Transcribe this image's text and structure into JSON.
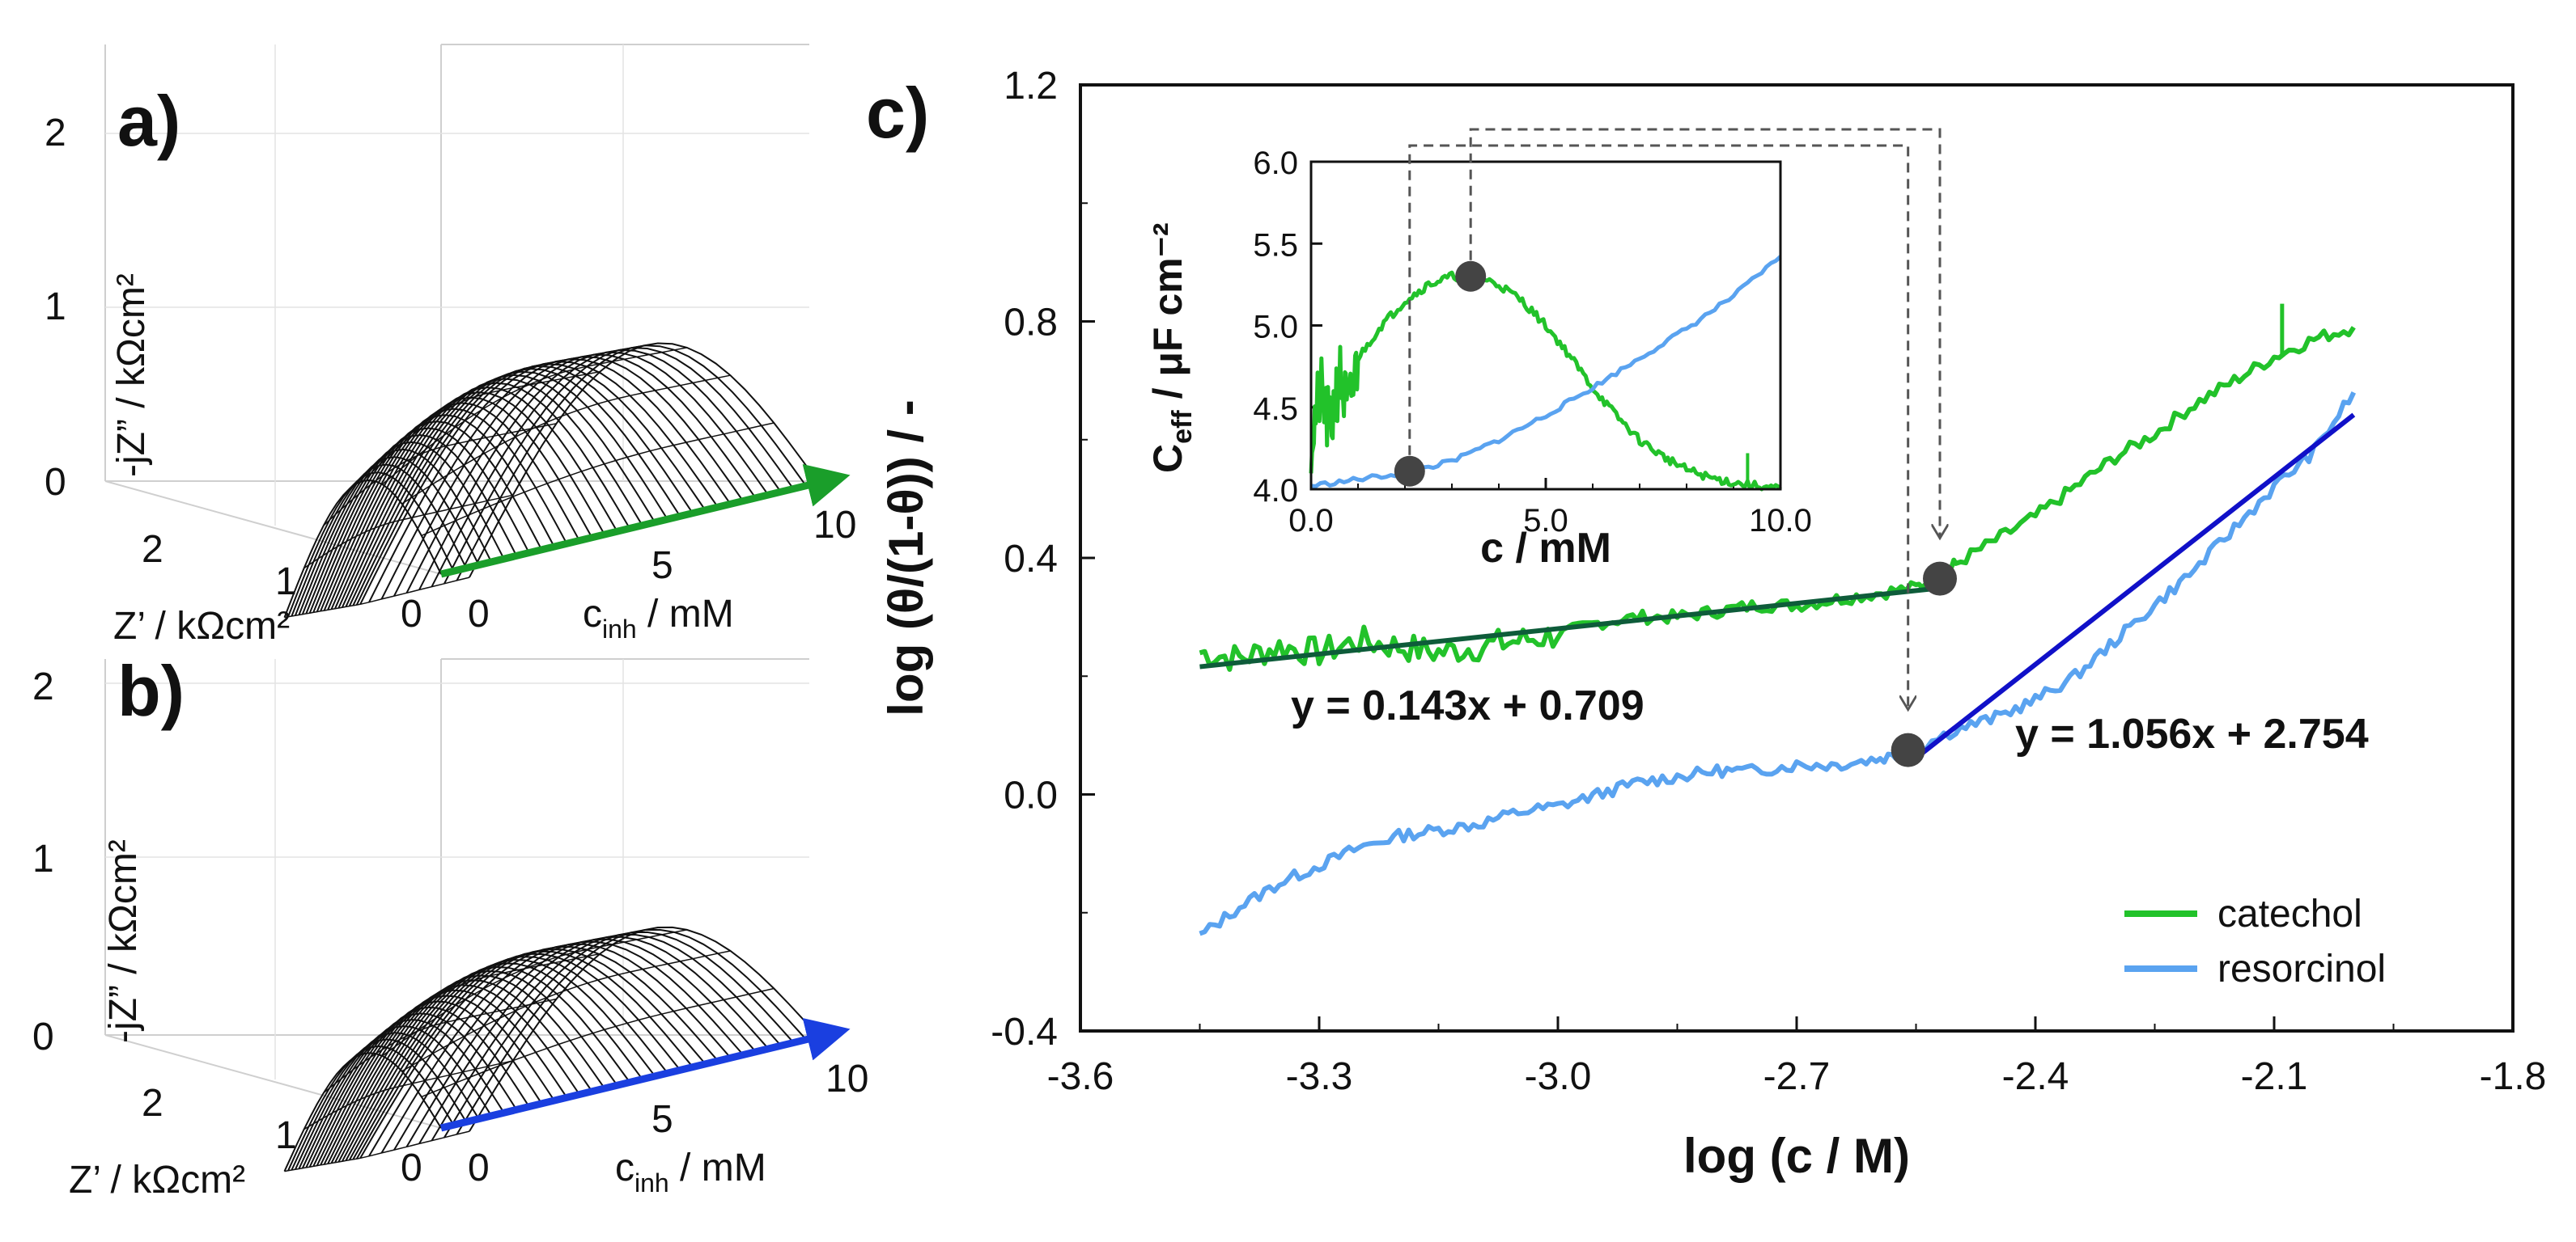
{
  "chart_data": [
    {
      "panel": "a",
      "type": "3d-surface",
      "panel_label": "a)",
      "series_color": "#1a9e2a",
      "zlabel": "-jZ” / kΩcm²",
      "ylabel": "Z’ / kΩcm²",
      "xlabel_main": "c",
      "xlabel_sub": "inh",
      "xlabel_tail": " / mM",
      "z_ticks": [
        "0",
        "1",
        "2"
      ],
      "y_ticks": [
        "2",
        "1",
        "0"
      ],
      "x_ticks": [
        "0",
        "5",
        "10"
      ],
      "peak_height": 1.2,
      "arc_count": 30
    },
    {
      "panel": "b",
      "type": "3d-surface",
      "panel_label": "b)",
      "series_color": "#1a3fe0",
      "zlabel": "-jZ” / kΩcm²",
      "ylabel": "Z’ / kΩcm²",
      "xlabel_main": "c",
      "xlabel_sub": "inh",
      "xlabel_tail": " / mM",
      "z_ticks": [
        "0",
        "1",
        "2"
      ],
      "y_ticks": [
        "2",
        "1",
        "0"
      ],
      "x_ticks": [
        "0",
        "5",
        "10"
      ],
      "peak_height": 1.0,
      "arc_count": 30
    },
    {
      "panel": "c",
      "type": "line",
      "panel_label": "c)",
      "xlabel": "log (c / M)",
      "ylabel": "log (θ/(1-θ)) / -",
      "xlim": [
        -3.6,
        -1.8
      ],
      "ylim": [
        -0.4,
        1.2
      ],
      "x_ticks": [
        "-3.6",
        "-3.3",
        "-3.0",
        "-2.7",
        "-2.4",
        "-2.1",
        "-1.8"
      ],
      "y_ticks": [
        "-0.4",
        "0.0",
        "0.4",
        "0.8",
        "1.2"
      ],
      "series": [
        {
          "name": "catechol",
          "color": "#22c22a",
          "x": [
            -3.45,
            -3.4,
            -3.35,
            -3.3,
            -3.25,
            -3.2,
            -3.15,
            -3.1,
            -3.05,
            -3.0,
            -2.95,
            -2.9,
            -2.85,
            -2.8,
            -2.75,
            -2.7,
            -2.65,
            -2.6,
            -2.55,
            -2.52,
            -2.5,
            -2.45,
            -2.4,
            -2.35,
            -2.3,
            -2.25,
            -2.2,
            -2.15,
            -2.1,
            -2.05,
            -2.0
          ],
          "y": [
            0.24,
            0.23,
            0.25,
            0.24,
            0.26,
            0.25,
            0.24,
            0.25,
            0.26,
            0.27,
            0.29,
            0.3,
            0.3,
            0.31,
            0.32,
            0.32,
            0.33,
            0.34,
            0.35,
            0.37,
            0.39,
            0.43,
            0.47,
            0.52,
            0.57,
            0.61,
            0.66,
            0.7,
            0.74,
            0.77,
            0.79
          ]
        },
        {
          "name": "resorcinol",
          "color": "#5aa3f0",
          "x": [
            -3.45,
            -3.4,
            -3.35,
            -3.3,
            -3.25,
            -3.2,
            -3.15,
            -3.1,
            -3.05,
            -3.0,
            -2.95,
            -2.9,
            -2.85,
            -2.8,
            -2.75,
            -2.7,
            -2.65,
            -2.6,
            -2.56,
            -2.5,
            -2.45,
            -2.4,
            -2.35,
            -2.3,
            -2.25,
            -2.2,
            -2.15,
            -2.1,
            -2.05,
            -2.0
          ],
          "y": [
            -0.24,
            -0.19,
            -0.15,
            -0.12,
            -0.09,
            -0.07,
            -0.06,
            -0.05,
            -0.03,
            -0.02,
            0.0,
            0.02,
            0.03,
            0.04,
            0.04,
            0.05,
            0.05,
            0.06,
            0.07,
            0.11,
            0.13,
            0.16,
            0.2,
            0.26,
            0.32,
            0.38,
            0.45,
            0.52,
            0.58,
            0.68
          ]
        }
      ],
      "fits": [
        {
          "name": "catechol fit",
          "color": "#0e5c3a",
          "label_color": "#0b7a3a",
          "label": "y = 0.143x + 0.709",
          "x": [
            -3.45,
            -2.52
          ],
          "y": [
            0.216,
            0.349
          ]
        },
        {
          "name": "resorcinol fit",
          "color": "#1010c8",
          "label_color": "#1a1ae0",
          "label": "y = 1.056x + 2.754",
          "x": [
            -2.56,
            -2.0
          ],
          "y": [
            0.051,
            0.642
          ]
        }
      ],
      "markers": [
        {
          "x": -2.52,
          "y": 0.365
        },
        {
          "x": -2.56,
          "y": 0.075
        }
      ],
      "legend": [
        "catechol",
        "resorcinol"
      ],
      "legend_position": "bottom-right",
      "inset": {
        "type": "line",
        "xlabel": "c / mM",
        "ylabel_main": "C",
        "ylabel_sub": "eff",
        "ylabel_tail": " / μF cm⁻²",
        "xlim": [
          0.0,
          10.0
        ],
        "ylim": [
          4.0,
          6.0
        ],
        "x_ticks": [
          "0.0",
          "5.0",
          "10.0"
        ],
        "y_ticks": [
          "4.0",
          "4.5",
          "5.0",
          "5.5",
          "6.0"
        ],
        "series": [
          {
            "name": "catechol",
            "color": "#22c22a",
            "x": [
              0.0,
              0.2,
              0.4,
              0.6,
              0.8,
              1.0,
              1.5,
              2.0,
              2.5,
              3.0,
              3.5,
              4.0,
              4.5,
              5.0,
              5.5,
              6.0,
              6.5,
              7.0,
              7.5,
              8.0,
              8.5,
              9.0,
              9.5,
              10.0
            ],
            "y": [
              4.3,
              4.6,
              4.35,
              4.7,
              4.45,
              4.8,
              5.0,
              5.15,
              5.25,
              5.3,
              5.3,
              5.25,
              5.15,
              5.0,
              4.82,
              4.62,
              4.45,
              4.3,
              4.2,
              4.12,
              4.07,
              4.04,
              4.02,
              4.0
            ]
          },
          {
            "name": "resorcinol",
            "color": "#5aa3f0",
            "x": [
              0.0,
              1.0,
              2.0,
              3.0,
              4.0,
              5.0,
              6.0,
              7.0,
              8.0,
              9.0,
              10.0
            ],
            "y": [
              4.02,
              4.06,
              4.1,
              4.17,
              4.3,
              4.45,
              4.62,
              4.8,
              4.98,
              5.18,
              5.42
            ]
          }
        ],
        "markers": [
          {
            "x": 2.1,
            "y": 4.11
          },
          {
            "x": 3.4,
            "y": 5.3
          }
        ]
      }
    }
  ]
}
